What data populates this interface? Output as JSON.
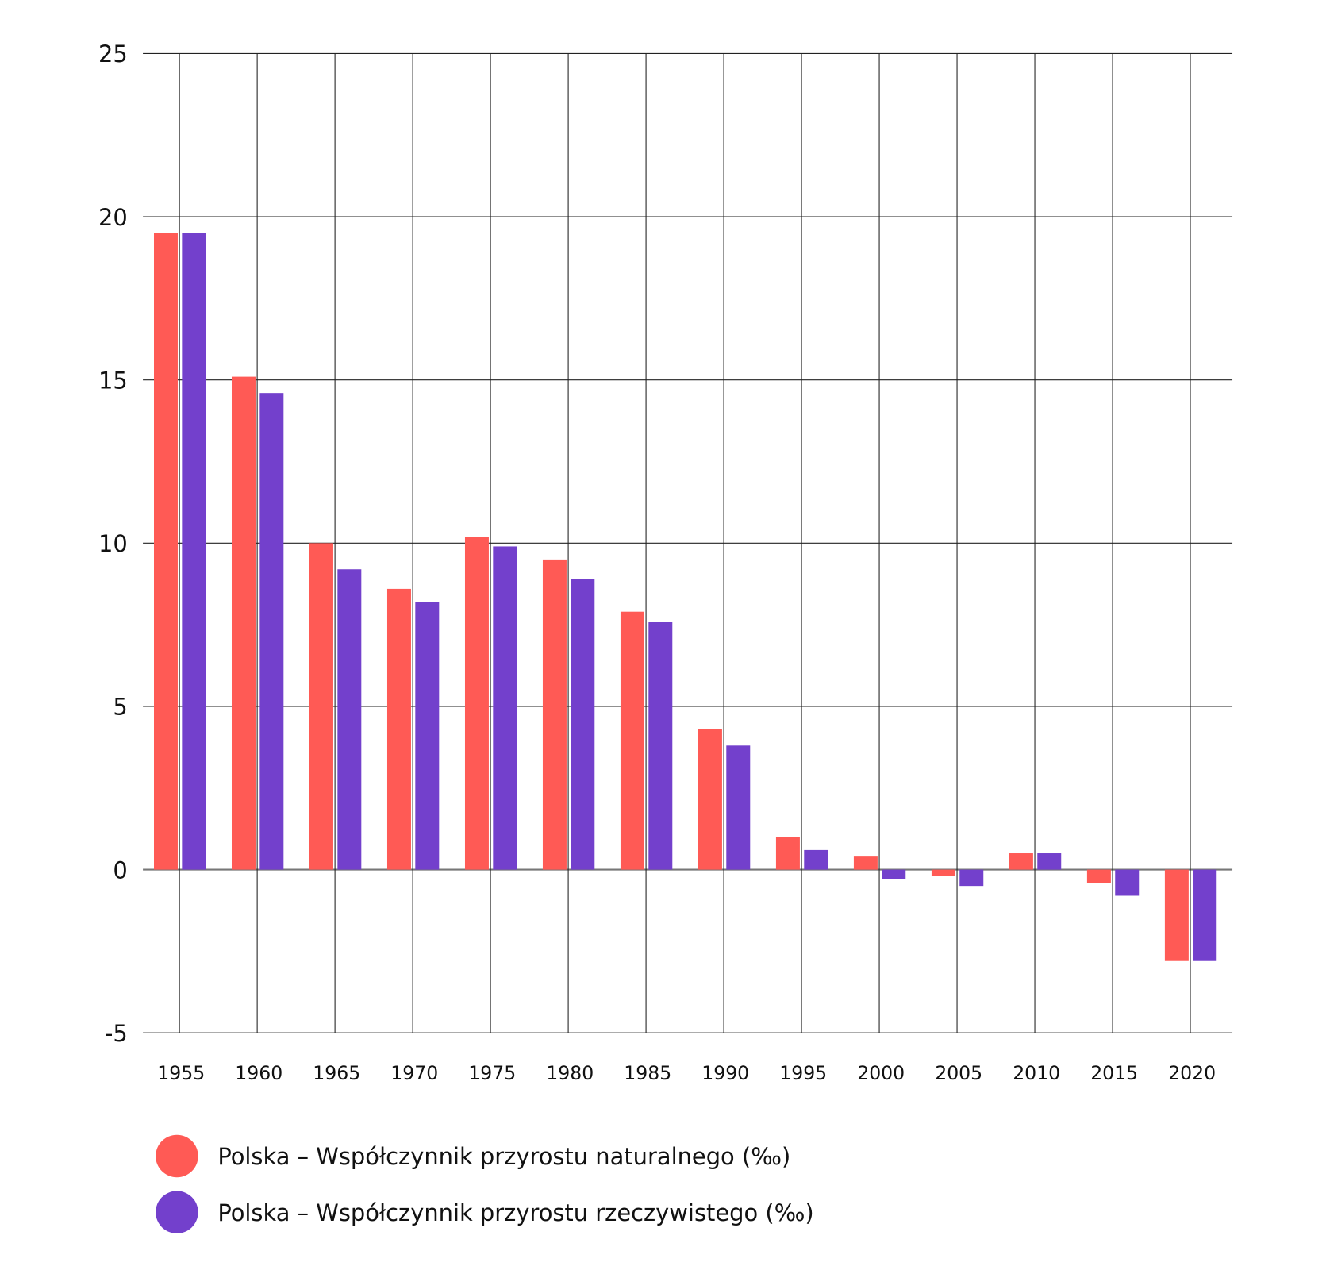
{
  "chart_data": {
    "type": "bar",
    "title": "",
    "xlabel": "",
    "ylabel": "",
    "ylim": [
      -5,
      25
    ],
    "yticks": [
      "25",
      "20",
      "15",
      "10",
      "5",
      "0",
      "-5"
    ],
    "ytick_values": [
      25,
      20,
      15,
      10,
      5,
      0,
      -5
    ],
    "grid": true,
    "legend_placement": "bottom-left",
    "categories": [
      "1955",
      "1960",
      "1965",
      "1970",
      "1975",
      "1980",
      "1985",
      "1990",
      "1995",
      "2000",
      "2005",
      "2010",
      "2015",
      "2020"
    ],
    "series": [
      {
        "name": "Polska – Współczynnik przyrostu naturalnego (‰)",
        "color": "#ff5a55",
        "values": [
          19.5,
          15.1,
          10.0,
          8.6,
          10.2,
          9.5,
          7.9,
          4.3,
          1.0,
          0.4,
          -0.2,
          0.5,
          -0.4,
          -2.8
        ]
      },
      {
        "name": "Polska – Współczynnik przyrostu rzeczywistego (‰)",
        "color": "#7340cc",
        "values": [
          19.5,
          14.6,
          9.2,
          8.2,
          9.9,
          8.9,
          7.6,
          3.8,
          0.6,
          -0.3,
          -0.5,
          0.5,
          -0.8,
          -2.8
        ]
      }
    ]
  }
}
